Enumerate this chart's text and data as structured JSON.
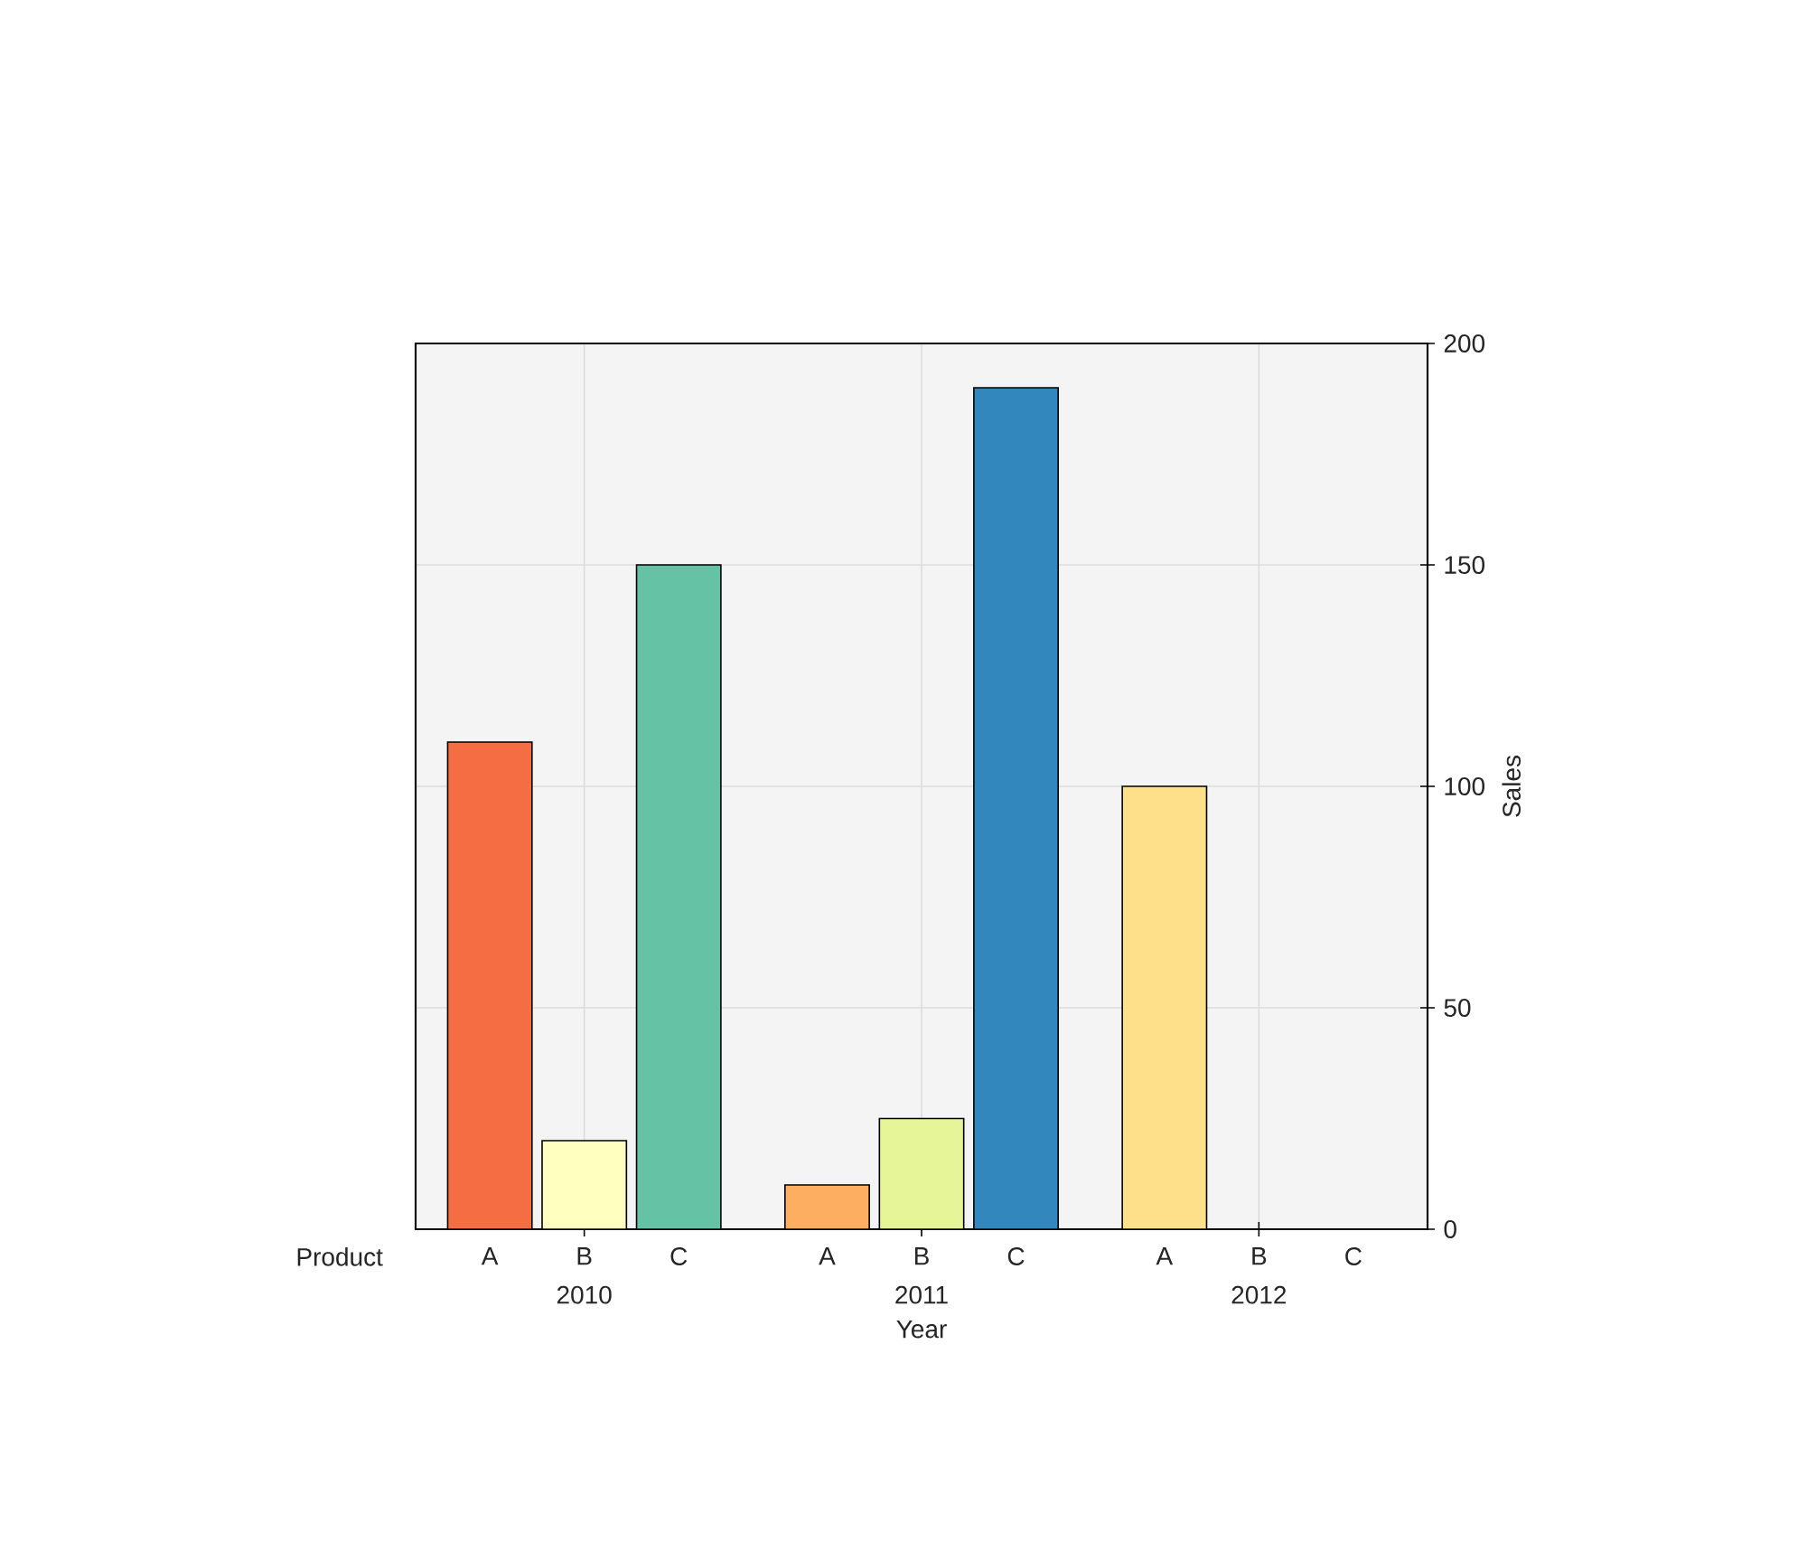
{
  "chart_data": {
    "type": "bar",
    "xlabel": "Year",
    "ylabel": "Sales",
    "legend_title": "Product",
    "categories": [
      "2010",
      "2011",
      "2012"
    ],
    "series": [
      {
        "name": "A",
        "colors": [
          "#f46d43",
          "#fdae61",
          "#fee08b"
        ],
        "values": [
          110,
          10,
          100
        ]
      },
      {
        "name": "B",
        "colors": [
          "#ffffbf",
          "#e6f598",
          "#abdda4"
        ],
        "values": [
          20,
          25,
          0
        ]
      },
      {
        "name": "C",
        "colors": [
          "#66c2a5",
          "#3288bd",
          "#5e4fa2"
        ],
        "values": [
          150,
          190,
          0
        ]
      }
    ],
    "ylim": [
      0,
      200
    ],
    "yticks": [
      0,
      50,
      100,
      150,
      200
    ],
    "grid": true
  }
}
